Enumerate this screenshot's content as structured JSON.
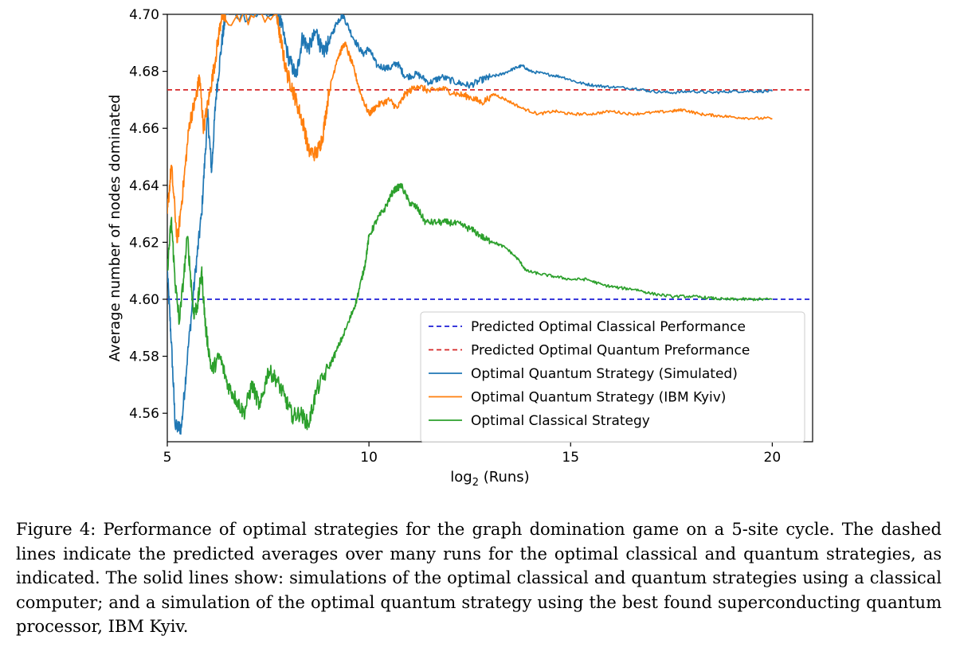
{
  "caption": "Figure 4: Performance of optimal strategies for the graph domination game on a 5-site cycle. The dashed lines indicate the predicted averages over many runs for the optimal classical and quantum strategies, as indicated. The solid lines show: simulations of the optimal classical and quantum strategies using a classical computer; and a simulation of the optimal quantum strategy using the best found superconducting quantum processor, IBM Kyiv.",
  "chart_data": {
    "type": "line",
    "title": "",
    "xlabel_main": "log",
    "xlabel_sub": "2",
    "xlabel_rest": " (Runs)",
    "ylabel": "Average number of nodes dominated",
    "xlim": [
      5,
      21
    ],
    "ylim": [
      4.55,
      4.7
    ],
    "xticks": [
      5,
      10,
      15,
      20
    ],
    "xtick_labels": [
      "5",
      "10",
      "15",
      "20"
    ],
    "yticks": [
      4.56,
      4.58,
      4.6,
      4.62,
      4.64,
      4.66,
      4.68,
      4.7
    ],
    "ytick_labels": [
      "4.56",
      "4.58",
      "4.60",
      "4.62",
      "4.64",
      "4.66",
      "4.68",
      "4.70"
    ],
    "grid": false,
    "legend_position": "lower-right",
    "reference_lines": [
      {
        "name": "Predicted Optimal Classical Performance",
        "y": 4.6,
        "color": "#1f1fd6",
        "style": "dashed"
      },
      {
        "name": "Predicted Optimal Quantum Preformance",
        "y": 4.6735,
        "color": "#d62728",
        "style": "dashed"
      }
    ],
    "series": [
      {
        "name": "Optimal Quantum Strategy (Simulated)",
        "color": "#1f77b4",
        "points": [
          [
            5,
            4.61
          ],
          [
            5.1,
            4.585
          ],
          [
            5.2,
            4.555
          ],
          [
            5.35,
            4.555
          ],
          [
            5.5,
            4.58
          ],
          [
            5.7,
            4.61
          ],
          [
            5.85,
            4.63
          ],
          [
            6.0,
            4.665
          ],
          [
            6.1,
            4.645
          ],
          [
            6.2,
            4.67
          ],
          [
            6.35,
            4.69
          ],
          [
            6.45,
            4.7
          ],
          [
            7.7,
            4.7
          ],
          [
            7.8,
            4.698
          ],
          [
            8.0,
            4.685
          ],
          [
            8.2,
            4.678
          ],
          [
            8.35,
            4.692
          ],
          [
            8.5,
            4.688
          ],
          [
            8.7,
            4.694
          ],
          [
            8.85,
            4.686
          ],
          [
            9.0,
            4.69
          ],
          [
            9.2,
            4.697
          ],
          [
            9.35,
            4.7
          ],
          [
            9.6,
            4.692
          ],
          [
            9.85,
            4.686
          ],
          [
            10.0,
            4.688
          ],
          [
            10.2,
            4.682
          ],
          [
            10.5,
            4.681
          ],
          [
            10.7,
            4.683
          ],
          [
            10.9,
            4.678
          ],
          [
            11.2,
            4.679
          ],
          [
            11.5,
            4.676
          ],
          [
            11.8,
            4.678
          ],
          [
            12.2,
            4.676
          ],
          [
            12.5,
            4.675
          ],
          [
            12.8,
            4.677
          ],
          [
            13.0,
            4.678
          ],
          [
            13.3,
            4.679
          ],
          [
            13.6,
            4.681
          ],
          [
            13.8,
            4.682
          ],
          [
            14.0,
            4.68
          ],
          [
            14.4,
            4.679
          ],
          [
            14.8,
            4.678
          ],
          [
            15.2,
            4.676
          ],
          [
            15.6,
            4.675
          ],
          [
            16.0,
            4.6745
          ],
          [
            16.6,
            4.674
          ],
          [
            17.0,
            4.673
          ],
          [
            17.5,
            4.6725
          ],
          [
            18.0,
            4.673
          ],
          [
            18.5,
            4.6725
          ],
          [
            19.0,
            4.673
          ],
          [
            19.5,
            4.673
          ],
          [
            20.0,
            4.673
          ]
        ]
      },
      {
        "name": "Optimal Quantum Strategy (IBM Kyiv)",
        "color": "#ff7f0e",
        "points": [
          [
            5,
            4.63
          ],
          [
            5.1,
            4.647
          ],
          [
            5.25,
            4.62
          ],
          [
            5.4,
            4.64
          ],
          [
            5.55,
            4.662
          ],
          [
            5.7,
            4.67
          ],
          [
            5.8,
            4.678
          ],
          [
            5.9,
            4.66
          ],
          [
            6.05,
            4.672
          ],
          [
            6.2,
            4.685
          ],
          [
            6.35,
            4.7
          ],
          [
            6.45,
            4.698
          ],
          [
            7.7,
            4.7
          ],
          [
            7.8,
            4.692
          ],
          [
            7.95,
            4.68
          ],
          [
            8.1,
            4.674
          ],
          [
            8.25,
            4.667
          ],
          [
            8.4,
            4.66
          ],
          [
            8.5,
            4.652
          ],
          [
            8.7,
            4.651
          ],
          [
            8.85,
            4.657
          ],
          [
            9.0,
            4.672
          ],
          [
            9.2,
            4.684
          ],
          [
            9.4,
            4.69
          ],
          [
            9.6,
            4.682
          ],
          [
            9.8,
            4.672
          ],
          [
            10.0,
            4.665
          ],
          [
            10.2,
            4.668
          ],
          [
            10.5,
            4.67
          ],
          [
            10.7,
            4.667
          ],
          [
            10.9,
            4.672
          ],
          [
            11.2,
            4.675
          ],
          [
            11.5,
            4.673
          ],
          [
            11.8,
            4.674
          ],
          [
            12.2,
            4.672
          ],
          [
            12.5,
            4.671
          ],
          [
            12.8,
            4.669
          ],
          [
            13.1,
            4.672
          ],
          [
            13.4,
            4.67
          ],
          [
            13.8,
            4.667
          ],
          [
            14.2,
            4.665
          ],
          [
            14.6,
            4.666
          ],
          [
            15.0,
            4.665
          ],
          [
            15.5,
            4.665
          ],
          [
            16.0,
            4.666
          ],
          [
            16.5,
            4.665
          ],
          [
            17.0,
            4.6655
          ],
          [
            17.5,
            4.666
          ],
          [
            17.8,
            4.6665
          ],
          [
            18.2,
            4.665
          ],
          [
            18.6,
            4.6645
          ],
          [
            19.0,
            4.664
          ],
          [
            19.5,
            4.6635
          ],
          [
            20.0,
            4.6635
          ]
        ]
      },
      {
        "name": "Optimal Classical Strategy",
        "color": "#2ca02c",
        "points": [
          [
            5,
            4.61
          ],
          [
            5.1,
            4.628
          ],
          [
            5.2,
            4.605
          ],
          [
            5.3,
            4.592
          ],
          [
            5.5,
            4.622
          ],
          [
            5.65,
            4.595
          ],
          [
            5.75,
            4.598
          ],
          [
            5.85,
            4.61
          ],
          [
            5.95,
            4.59
          ],
          [
            6.1,
            4.575
          ],
          [
            6.3,
            4.58
          ],
          [
            6.5,
            4.57
          ],
          [
            6.7,
            4.565
          ],
          [
            6.9,
            4.56
          ],
          [
            7.1,
            4.57
          ],
          [
            7.3,
            4.562
          ],
          [
            7.5,
            4.575
          ],
          [
            7.7,
            4.572
          ],
          [
            7.9,
            4.566
          ],
          [
            8.1,
            4.559
          ],
          [
            8.3,
            4.56
          ],
          [
            8.5,
            4.556
          ],
          [
            8.7,
            4.568
          ],
          [
            9.0,
            4.576
          ],
          [
            9.2,
            4.582
          ],
          [
            9.5,
            4.592
          ],
          [
            9.7,
            4.6
          ],
          [
            9.9,
            4.612
          ],
          [
            10.0,
            4.622
          ],
          [
            10.2,
            4.628
          ],
          [
            10.4,
            4.632
          ],
          [
            10.6,
            4.638
          ],
          [
            10.8,
            4.64
          ],
          [
            11.0,
            4.634
          ],
          [
            11.2,
            4.632
          ],
          [
            11.4,
            4.627
          ],
          [
            11.7,
            4.627
          ],
          [
            12.0,
            4.627
          ],
          [
            12.3,
            4.626
          ],
          [
            12.6,
            4.624
          ],
          [
            12.9,
            4.621
          ],
          [
            13.1,
            4.62
          ],
          [
            13.4,
            4.618
          ],
          [
            13.7,
            4.614
          ],
          [
            13.9,
            4.61
          ],
          [
            14.2,
            4.609
          ],
          [
            14.6,
            4.608
          ],
          [
            15.0,
            4.607
          ],
          [
            15.4,
            4.607
          ],
          [
            15.8,
            4.605
          ],
          [
            16.2,
            4.604
          ],
          [
            16.6,
            4.6035
          ],
          [
            17.0,
            4.602
          ],
          [
            17.5,
            4.601
          ],
          [
            18.0,
            4.601
          ],
          [
            18.4,
            4.6005
          ],
          [
            18.8,
            4.6
          ],
          [
            19.2,
            4.6
          ],
          [
            19.6,
            4.6
          ],
          [
            20.0,
            4.6
          ]
        ]
      }
    ]
  }
}
